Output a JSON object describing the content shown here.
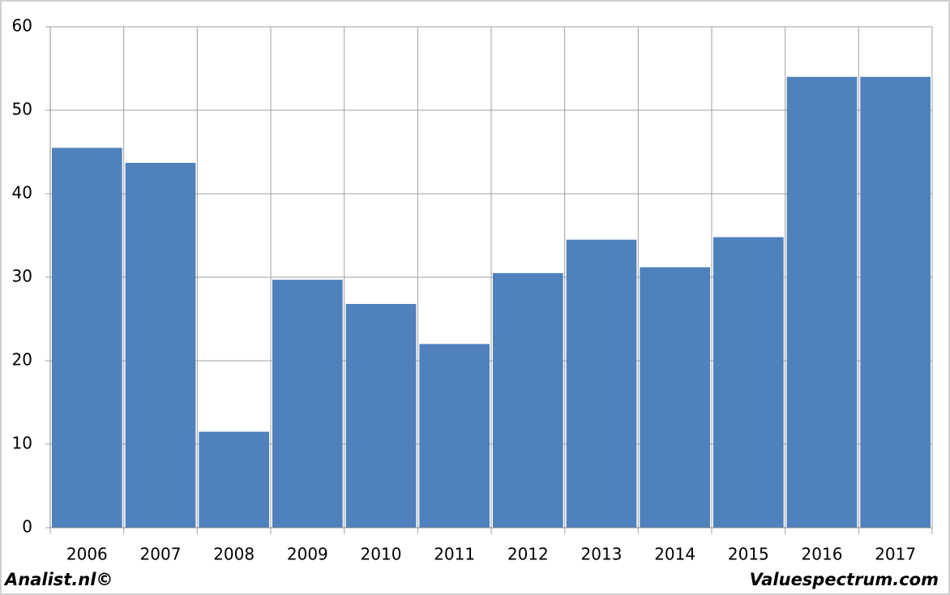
{
  "chart_data": {
    "type": "bar",
    "categories": [
      "2006",
      "2007",
      "2008",
      "2009",
      "2010",
      "2011",
      "2012",
      "2013",
      "2014",
      "2015",
      "2016",
      "2017"
    ],
    "values": [
      45.5,
      43.7,
      11.5,
      29.7,
      26.8,
      22.0,
      30.5,
      34.5,
      31.2,
      34.8,
      54.0,
      54.0
    ],
    "color": "#4f81bd",
    "ylim": [
      0,
      60
    ],
    "yticks": [
      0,
      10,
      20,
      30,
      40,
      50,
      60
    ],
    "grid": true,
    "footer_left": "Analist.nl©",
    "footer_right": "Valuespectrum.com"
  }
}
